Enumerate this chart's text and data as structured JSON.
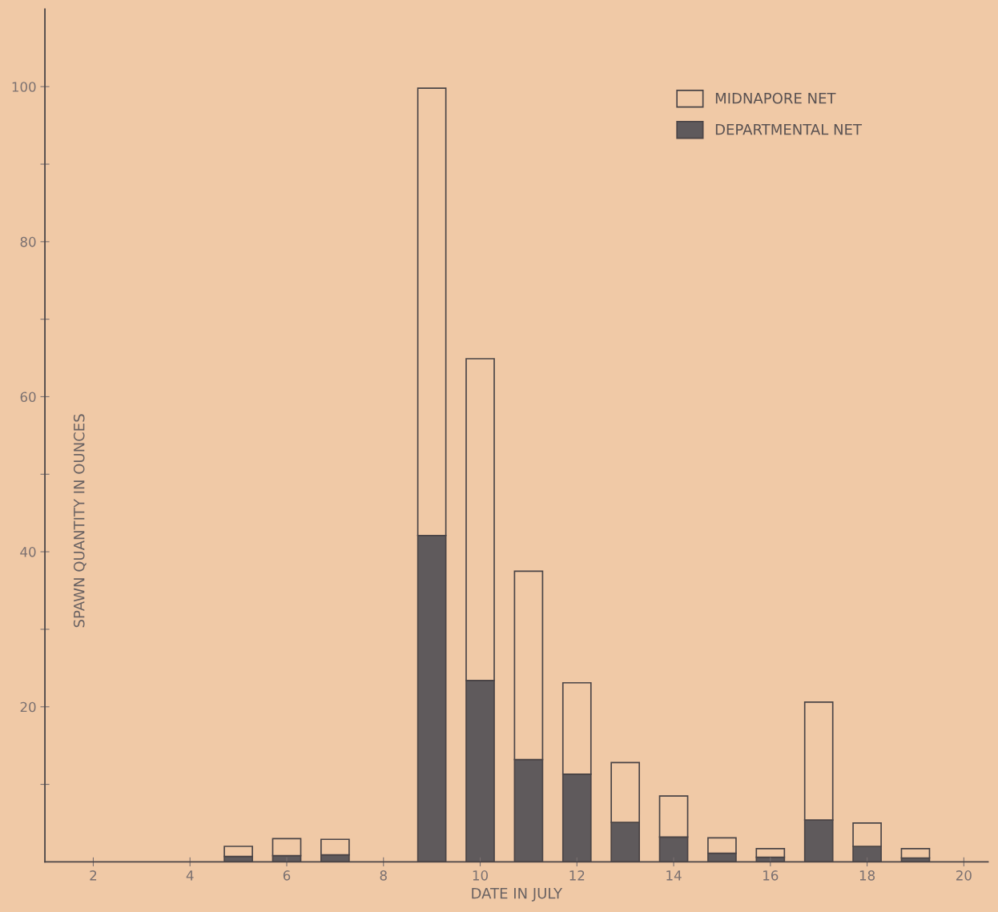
{
  "chart_data": {
    "type": "bar",
    "stacked": true,
    "xlabel": "DATE IN JULY",
    "ylabel": "SPAWN QUANTITY IN OUNCES",
    "x": [
      5,
      6,
      7,
      9,
      10,
      11,
      12,
      13,
      14,
      15,
      16,
      17,
      18,
      19
    ],
    "series": [
      {
        "name": "DEPARTMENTAL NET",
        "color": "#5f5a5c",
        "values": [
          0.7,
          0.8,
          0.9,
          42.1,
          23.4,
          13.2,
          11.3,
          5.1,
          3.2,
          1.1,
          0.6,
          5.4,
          2.0,
          0.5
        ]
      },
      {
        "name": "MIDNAPORE NET",
        "color": "#f0c9a6",
        "values": [
          1.3,
          2.2,
          2.0,
          57.7,
          41.5,
          24.3,
          11.8,
          7.7,
          5.3,
          2.0,
          1.1,
          15.2,
          3.0,
          1.2
        ]
      }
    ],
    "xlim": [
      1,
      20.5
    ],
    "xticks": [
      2,
      4,
      6,
      8,
      10,
      12,
      14,
      16,
      18,
      20
    ],
    "ylim": [
      0,
      110
    ],
    "yticks": [
      {
        "value": 10,
        "label": null
      },
      20,
      {
        "value": 30,
        "label": null
      },
      40,
      {
        "value": 50,
        "label": null
      },
      60,
      {
        "value": 70,
        "label": null
      },
      80,
      {
        "value": 90,
        "label": null
      },
      100
    ],
    "legend": "top right",
    "grid": false
  }
}
